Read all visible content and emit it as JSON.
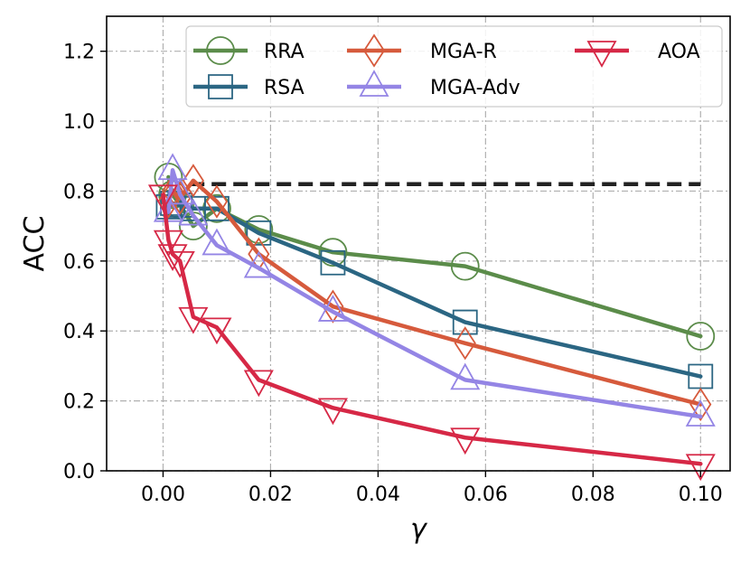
{
  "chart_data": {
    "type": "line",
    "xlabel": "γ",
    "ylabel": "ACC",
    "xlim": [
      -0.0105,
      0.1055
    ],
    "ylim": [
      0.0,
      1.3
    ],
    "xticks": [
      0.0,
      0.02,
      0.04,
      0.06,
      0.08,
      0.1
    ],
    "xtick_labels": [
      "0.00",
      "0.02",
      "0.04",
      "0.06",
      "0.08",
      "0.10"
    ],
    "yticks": [
      0.0,
      0.2,
      0.4,
      0.6,
      0.8,
      1.0,
      1.2
    ],
    "ytick_labels": [
      "0.0",
      "0.2",
      "0.4",
      "0.6",
      "0.8",
      "1.0",
      "1.2"
    ],
    "grid": true,
    "legend_position": "top-right",
    "reference_line": {
      "y": 0.82,
      "x": [
        0.005,
        0.1
      ],
      "style": "dashed",
      "color": "#222222"
    },
    "series": [
      {
        "name": "RRA",
        "color": "#5b8c4a",
        "marker": "circle",
        "x": [
          0.001,
          0.00178,
          0.00316,
          0.00562,
          0.01,
          0.0178,
          0.0316,
          0.0562,
          0.1
        ],
        "y": [
          0.84,
          0.79,
          0.76,
          0.7,
          0.75,
          0.69,
          0.625,
          0.585,
          0.385
        ]
      },
      {
        "name": "RSA",
        "color": "#2b6683",
        "marker": "square",
        "x": [
          0.001,
          0.00178,
          0.00316,
          0.00562,
          0.01,
          0.0178,
          0.0316,
          0.0562,
          0.1
        ],
        "y": [
          0.755,
          0.765,
          0.76,
          0.75,
          0.75,
          0.68,
          0.595,
          0.425,
          0.27
        ]
      },
      {
        "name": "MGA-R",
        "color": "#d65a3c",
        "marker": "diamond",
        "x": [
          0.001,
          0.00178,
          0.00316,
          0.00562,
          0.01,
          0.0178,
          0.0316,
          0.0562,
          0.1
        ],
        "y": [
          0.77,
          0.8,
          0.78,
          0.83,
          0.77,
          0.62,
          0.47,
          0.365,
          0.19
        ]
      },
      {
        "name": "MGA-Adv",
        "color": "#9485e5",
        "marker": "triangle-up",
        "x": [
          0.001,
          0.00178,
          0.00316,
          0.00562,
          0.01,
          0.0178,
          0.0316,
          0.0562,
          0.1
        ],
        "y": [
          0.74,
          0.86,
          0.79,
          0.73,
          0.645,
          0.58,
          0.455,
          0.26,
          0.155
        ]
      },
      {
        "name": "AOA",
        "color": "#d62846",
        "marker": "triangle-down",
        "x": [
          0.0,
          0.001,
          0.00178,
          0.00316,
          0.00562,
          0.01,
          0.0178,
          0.0316,
          0.0562,
          0.1
        ],
        "y": [
          0.79,
          0.66,
          0.62,
          0.6,
          0.44,
          0.41,
          0.26,
          0.18,
          0.095,
          0.02
        ]
      }
    ]
  }
}
